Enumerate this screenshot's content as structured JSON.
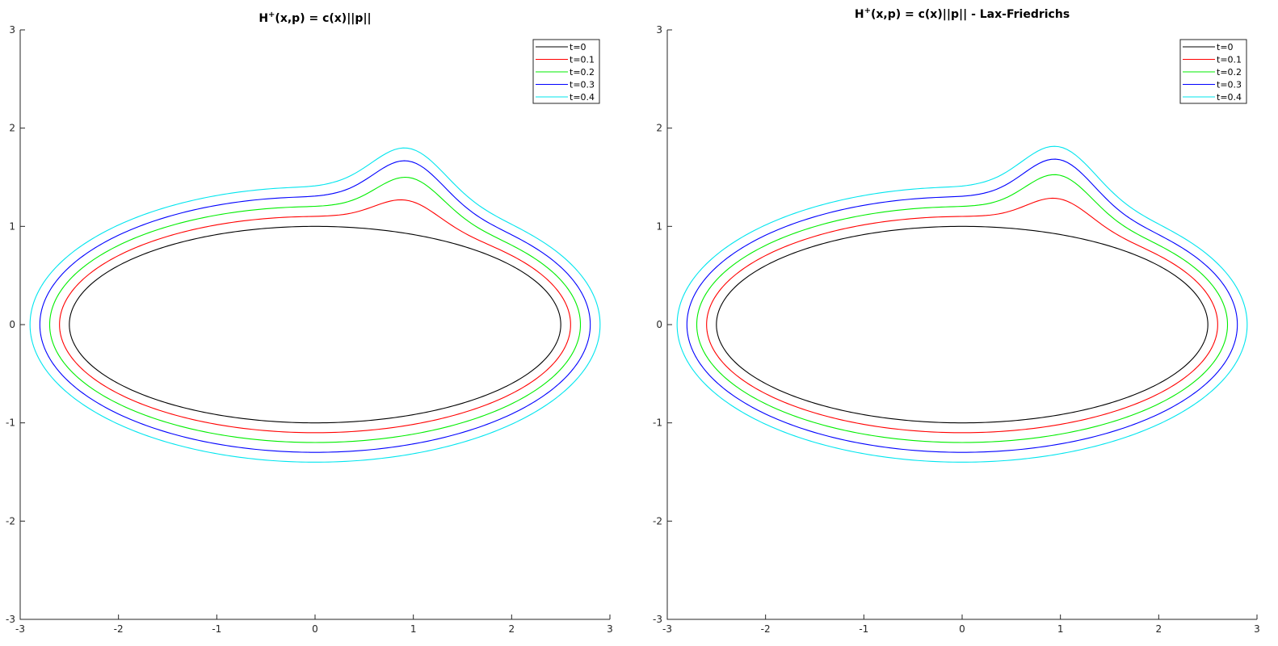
{
  "chart_data": [
    {
      "type": "line",
      "title_main": "H",
      "title_sup": "+",
      "title_rest": "(x,p) = c(x)||p||",
      "xlim": [
        -3,
        3
      ],
      "ylim": [
        -3,
        3
      ],
      "xticks": [
        -3,
        -2,
        -1,
        0,
        1,
        2,
        3
      ],
      "yticks": [
        -3,
        -2,
        -1,
        0,
        1,
        2,
        3
      ],
      "grid": false,
      "legend_position": "top-right",
      "series": [
        {
          "name": "t=0",
          "color": "#000000",
          "t": 0,
          "ellipse": {
            "a": 2.5,
            "b": 1.0
          },
          "upper_profile": [
            [
              -2.5,
              0
            ],
            [
              -2.0,
              0.6
            ],
            [
              -1.5,
              0.8
            ],
            [
              -1.0,
              0.92
            ],
            [
              -0.5,
              0.98
            ],
            [
              0,
              1.0
            ],
            [
              0.5,
              0.98
            ],
            [
              1.0,
              0.92
            ],
            [
              1.5,
              0.8
            ],
            [
              2.0,
              0.6
            ],
            [
              2.5,
              0
            ]
          ],
          "lower_profile": [
            [
              -2.5,
              0
            ],
            [
              0,
              -1.0
            ],
            [
              2.5,
              0
            ]
          ]
        },
        {
          "name": "t=0.1",
          "color": "#ff0000",
          "t": 0.1,
          "bump_peak": [
            0.95,
            1.28
          ],
          "upper_profile": [
            [
              -2.6,
              0
            ],
            [
              -2.0,
              0.72
            ],
            [
              -1.5,
              0.91
            ],
            [
              -1.0,
              1.02
            ],
            [
              -0.5,
              1.08
            ],
            [
              0,
              1.1
            ],
            [
              0.3,
              1.12
            ],
            [
              0.5,
              1.18
            ],
            [
              0.95,
              1.28
            ],
            [
              1.3,
              1.2
            ],
            [
              1.6,
              0.98
            ],
            [
              2.0,
              0.72
            ],
            [
              2.6,
              0
            ]
          ],
          "lower_profile": [
            [
              -2.6,
              0
            ],
            [
              0,
              -1.1
            ],
            [
              2.6,
              0
            ]
          ]
        },
        {
          "name": "t=0.2",
          "color": "#00ee00",
          "t": 0.2,
          "bump_peak": [
            0.98,
            1.52
          ],
          "upper_profile": [
            [
              -2.7,
              0
            ],
            [
              -2.0,
              0.83
            ],
            [
              -1.5,
              1.02
            ],
            [
              -1.0,
              1.12
            ],
            [
              -0.5,
              1.18
            ],
            [
              0,
              1.2
            ],
            [
              0.3,
              1.23
            ],
            [
              0.5,
              1.34
            ],
            [
              0.98,
              1.52
            ],
            [
              1.3,
              1.45
            ],
            [
              1.6,
              1.12
            ],
            [
              2.0,
              0.83
            ],
            [
              2.7,
              0
            ]
          ],
          "lower_profile": [
            [
              -2.7,
              0
            ],
            [
              0,
              -1.2
            ],
            [
              2.7,
              0
            ]
          ]
        },
        {
          "name": "t=0.3",
          "color": "#0000ff",
          "t": 0.3,
          "bump_peak": [
            0.97,
            1.69
          ],
          "upper_profile": [
            [
              -2.8,
              0
            ],
            [
              -2.0,
              0.94
            ],
            [
              -1.5,
              1.13
            ],
            [
              -1.0,
              1.22
            ],
            [
              -0.5,
              1.28
            ],
            [
              0,
              1.3
            ],
            [
              0.3,
              1.34
            ],
            [
              0.5,
              1.48
            ],
            [
              0.97,
              1.69
            ],
            [
              1.3,
              1.63
            ],
            [
              1.6,
              1.24
            ],
            [
              2.0,
              0.94
            ],
            [
              2.8,
              0
            ]
          ],
          "lower_profile": [
            [
              -2.8,
              0
            ],
            [
              0,
              -1.3
            ],
            [
              2.8,
              0
            ]
          ]
        },
        {
          "name": "t=0.4",
          "color": "#00e5ee",
          "t": 0.4,
          "bump_peak": [
            0.97,
            1.82
          ],
          "upper_profile": [
            [
              -2.9,
              0
            ],
            [
              -2.0,
              1.05
            ],
            [
              -1.5,
              1.24
            ],
            [
              -1.0,
              1.33
            ],
            [
              -0.5,
              1.38
            ],
            [
              0,
              1.4
            ],
            [
              0.3,
              1.44
            ],
            [
              0.5,
              1.6
            ],
            [
              0.97,
              1.82
            ],
            [
              1.3,
              1.76
            ],
            [
              1.6,
              1.34
            ],
            [
              2.0,
              1.05
            ],
            [
              2.9,
              0
            ]
          ],
          "lower_profile": [
            [
              -2.9,
              0
            ],
            [
              0,
              -1.4
            ],
            [
              2.9,
              0
            ]
          ]
        }
      ]
    },
    {
      "type": "line",
      "title_main": "H",
      "title_sup": "+",
      "title_rest": "(x,p) = c(x)||p|| - Lax-Friedrichs",
      "xlim": [
        -3,
        3
      ],
      "ylim": [
        -3,
        3
      ],
      "xticks": [
        -3,
        -2,
        -1,
        0,
        1,
        2,
        3
      ],
      "yticks": [
        -3,
        -2,
        -1,
        0,
        1,
        2,
        3
      ],
      "grid": false,
      "legend_position": "top-right",
      "series": [
        {
          "name": "t=0",
          "color": "#000000",
          "t": 0,
          "ellipse": {
            "a": 2.5,
            "b": 1.0
          }
        },
        {
          "name": "t=0.1",
          "color": "#ff0000",
          "t": 0.1,
          "bump_peak": [
            1.0,
            1.3
          ]
        },
        {
          "name": "t=0.2",
          "color": "#00ee00",
          "t": 0.2,
          "bump_peak": [
            1.0,
            1.55
          ]
        },
        {
          "name": "t=0.3",
          "color": "#0000ff",
          "t": 0.3,
          "bump_peak": [
            1.0,
            1.71
          ]
        },
        {
          "name": "t=0.4",
          "color": "#00e5ee",
          "t": 0.4,
          "bump_peak": [
            1.0,
            1.84
          ]
        }
      ]
    }
  ]
}
